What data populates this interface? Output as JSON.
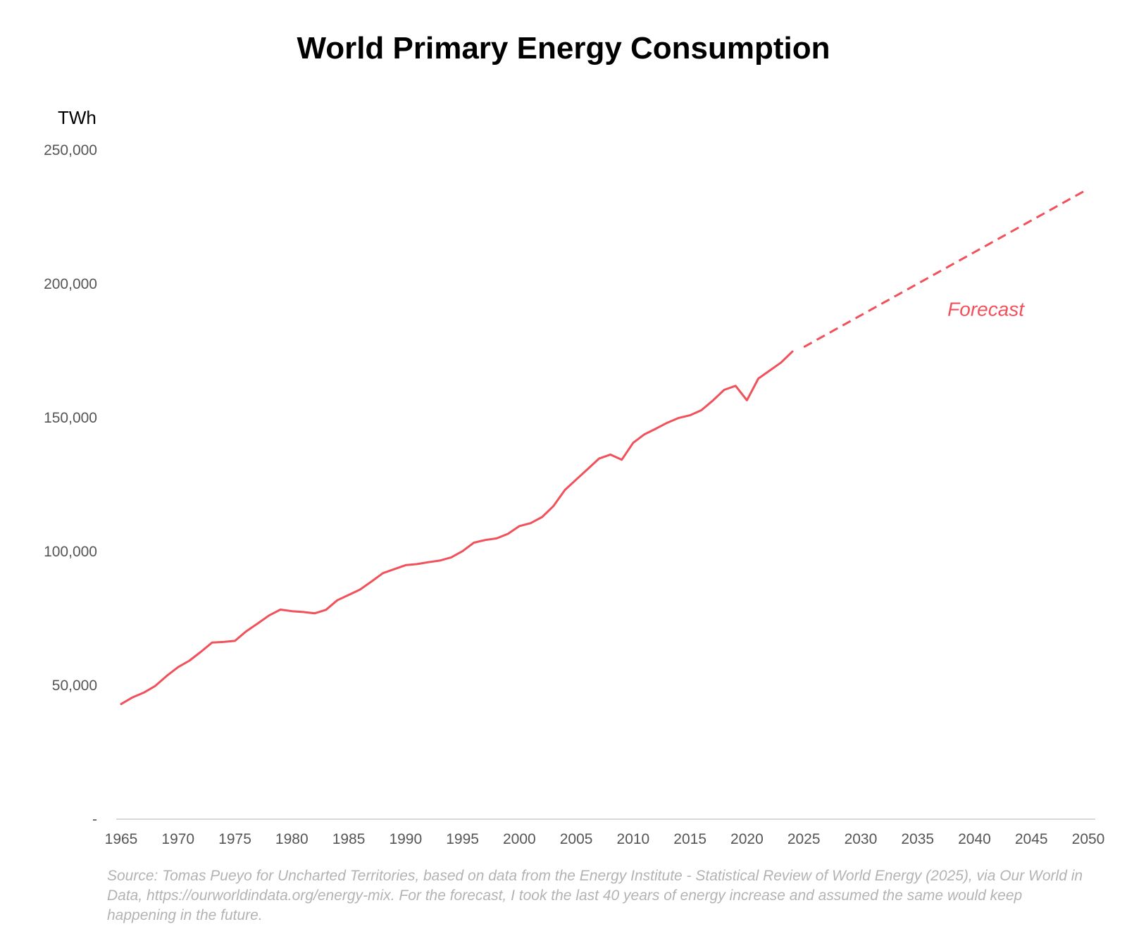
{
  "title": "World Primary Energy Consumption",
  "source": "Source: Tomas Pueyo for Uncharted Territories, based on data from the Energy Institute - Statistical Review of World Energy (2025), via Our World in Data, https://ourworldindata.org/energy-mix. For the forecast, I took the last 40 years of energy increase and assumed the same would keep happening in the future.",
  "colors": {
    "line": "#f0515b",
    "axis": "#cccccc",
    "tick_text": "#555555",
    "source_text": "#b3b3b3"
  },
  "chart_data": {
    "type": "line",
    "title": "World Primary Energy Consumption",
    "ylabel": "TWh",
    "xlabel": "",
    "xlim": [
      1965,
      2050
    ],
    "ylim": [
      0,
      250000
    ],
    "y_ticks": [
      0,
      50000,
      100000,
      150000,
      200000,
      250000
    ],
    "y_tick_labels": [
      "-",
      "50,000",
      "100,000",
      "150,000",
      "200,000",
      "250,000"
    ],
    "x_ticks": [
      1965,
      1970,
      1975,
      1980,
      1985,
      1990,
      1995,
      2000,
      2005,
      2010,
      2015,
      2020,
      2025,
      2030,
      2035,
      2040,
      2045,
      2050
    ],
    "x_tick_labels": [
      "1965",
      "1970",
      "1975",
      "1980",
      "1985",
      "1990",
      "1995",
      "2000",
      "2005",
      "2010",
      "2015",
      "2020",
      "2025",
      "2030",
      "2035",
      "2040",
      "2045",
      "2050"
    ],
    "grid": false,
    "legend": "none",
    "annotations": [
      {
        "text": "Forecast",
        "x": 2041,
        "y": 188000
      }
    ],
    "series": [
      {
        "style": "solid",
        "x": [
          1965,
          1966,
          1967,
          1968,
          1969,
          1970,
          1971,
          1972,
          1973,
          1974,
          1975,
          1976,
          1977,
          1978,
          1979,
          1980,
          1981,
          1982,
          1983,
          1984,
          1985,
          1986,
          1987,
          1988,
          1989,
          1990,
          1991,
          1992,
          1993,
          1994,
          1995,
          1996,
          1997,
          1998,
          1999,
          2000,
          2001,
          2002,
          2003,
          2004,
          2005,
          2006,
          2007,
          2008,
          2009,
          2010,
          2011,
          2012,
          2013,
          2014,
          2015,
          2016,
          2017,
          2018,
          2019,
          2020,
          2021,
          2022,
          2023,
          2024
        ],
        "y": [
          43000,
          45500,
          47300,
          49800,
          53500,
          56800,
          59200,
          62500,
          66000,
          66200,
          66600,
          70200,
          73100,
          76100,
          78300,
          77700,
          77400,
          76900,
          78200,
          81800,
          83800,
          85800,
          88800,
          91900,
          93400,
          94900,
          95300,
          96000,
          96600,
          97800,
          100100,
          103300,
          104300,
          104900,
          106600,
          109500,
          110600,
          112900,
          117000,
          123000,
          126900,
          130800,
          134700,
          136200,
          134300,
          140600,
          143800,
          145900,
          148100,
          149900,
          150900,
          152800,
          156400,
          160400,
          161900,
          156500,
          164600,
          167600,
          170600,
          174700
        ]
      },
      {
        "style": "dashed",
        "x": [
          2025,
          2050
        ],
        "y": [
          176400,
          235500
        ]
      }
    ]
  }
}
